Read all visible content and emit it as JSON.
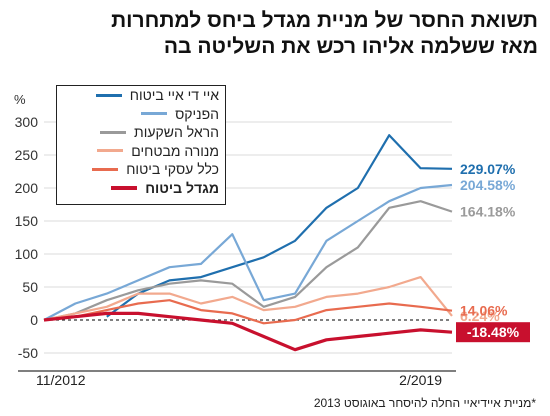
{
  "title_line1": "תשואת החסר של מניית מגדל ביחס למתחרות",
  "title_line2": "מאז ששלמה אליהו רכש את השליטה בה",
  "footnote": "*מניית איידיאיי החלה להיסחר באוגוסט 2013",
  "chart_data": {
    "type": "line",
    "y_unit_label": "%",
    "ylim": [
      -50,
      300
    ],
    "yticks": [
      -50,
      0,
      50,
      100,
      150,
      200,
      250,
      300
    ],
    "x_tick_labels": [
      "11/2012",
      "2/2019"
    ],
    "x": [
      "2012-11",
      "2013-05",
      "2013-11",
      "2014-05",
      "2014-11",
      "2015-05",
      "2015-11",
      "2016-05",
      "2016-11",
      "2017-05",
      "2017-11",
      "2018-05",
      "2018-11",
      "2019-02"
    ],
    "series": [
      {
        "name": "איי די איי ביטוח",
        "color": "#1f6fae",
        "end_label": "229.07%",
        "bold": false,
        "values": [
          null,
          null,
          5,
          40,
          60,
          65,
          80,
          95,
          120,
          170,
          200,
          280,
          230,
          229.07
        ]
      },
      {
        "name": "הפניקס",
        "color": "#78a8d6",
        "end_label": "204.58%",
        "bold": false,
        "values": [
          0,
          25,
          40,
          60,
          80,
          85,
          130,
          30,
          40,
          120,
          150,
          180,
          200,
          204.58
        ]
      },
      {
        "name": "הראל השקעות",
        "color": "#9a9a9a",
        "end_label": "164.18%",
        "bold": false,
        "values": [
          0,
          10,
          30,
          45,
          55,
          60,
          55,
          20,
          35,
          80,
          110,
          170,
          180,
          164.18
        ]
      },
      {
        "name": "מנורה מבטחים",
        "color": "#f2a98e",
        "end_label": "6.24%",
        "bold": false,
        "values": [
          0,
          10,
          20,
          40,
          40,
          25,
          35,
          15,
          20,
          35,
          40,
          50,
          65,
          6.24
        ]
      },
      {
        "name": "כלל עסקי ביטוח",
        "color": "#e86b4f",
        "end_label": "14.06%",
        "bold": false,
        "values": [
          0,
          5,
          15,
          25,
          30,
          15,
          10,
          -5,
          0,
          15,
          20,
          25,
          20,
          14.06
        ]
      },
      {
        "name": "מגדל ביטוח",
        "color": "#c8102e",
        "end_label": "-18.48%",
        "bold": true,
        "values": [
          0,
          5,
          10,
          10,
          5,
          0,
          -5,
          -25,
          -45,
          -30,
          -25,
          -20,
          -15,
          -18.48
        ]
      }
    ],
    "grid": true,
    "legend_position": "top-left"
  }
}
